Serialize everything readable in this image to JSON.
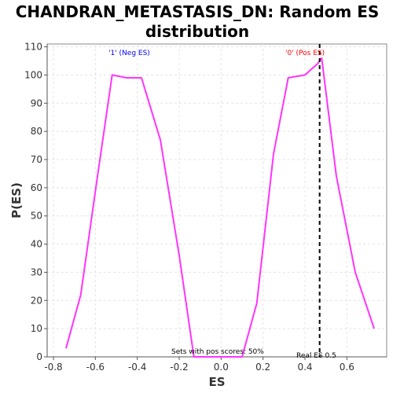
{
  "chart_data": {
    "type": "line",
    "title": "CHANDRAN_METASTASIS_DN: Random ES distribution",
    "title_lines": [
      "CHANDRAN_METASTASIS_DN: Random ES",
      "distribution"
    ],
    "xlabel": "ES",
    "ylabel": "P(ES)",
    "xlim": [
      -0.83,
      0.79
    ],
    "ylim": [
      0,
      111
    ],
    "xticks": [
      -0.8,
      -0.6,
      -0.4,
      -0.2,
      0.0,
      0.2,
      0.4,
      0.6
    ],
    "xtick_labels": [
      "-0.8",
      "-0.6",
      "-0.4",
      "-0.2",
      "0.0",
      "0.2",
      "0.4",
      "0.6"
    ],
    "yticks": [
      0,
      10,
      20,
      30,
      40,
      50,
      60,
      70,
      80,
      90,
      100,
      110
    ],
    "ytick_labels": [
      "0",
      "10",
      "20",
      "30",
      "40",
      "50",
      "60",
      "70",
      "80",
      "90",
      "100",
      "110"
    ],
    "grid": true,
    "series": [
      {
        "color": "#ff33ff",
        "x": [
          -0.74,
          -0.67,
          -0.59,
          -0.52,
          -0.45,
          -0.38,
          -0.29,
          -0.2,
          -0.13,
          -0.06,
          0.01,
          0.1,
          0.17,
          0.25,
          0.32,
          0.4,
          0.46,
          0.48,
          0.55,
          0.64,
          0.73
        ],
        "y": [
          3,
          22,
          64,
          100,
          99,
          99,
          77,
          36,
          0,
          0,
          0,
          0,
          19,
          72,
          99,
          100,
          104,
          106,
          64,
          30,
          10
        ]
      }
    ],
    "annotations": {
      "neg_label": "'1' (Neg ES)",
      "neg_color": "#0000ff",
      "pos_label": "'0' (Pos ES)",
      "pos_color": "#ff0000",
      "sets_text": "Sets with pos scores: 50%",
      "real_es_label": "Real ES 0.5",
      "real_es_x": 0.47
    }
  }
}
